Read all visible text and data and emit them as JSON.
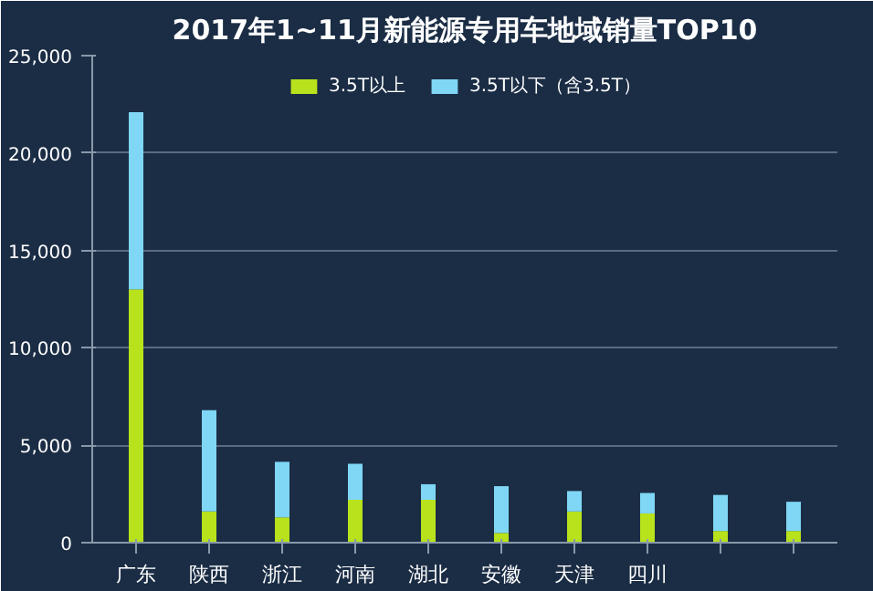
{
  "chart_data": {
    "type": "bar",
    "title": "2017年1~11月新能源专用车地域销量TOP10",
    "stacked": true,
    "categories": [
      "广东",
      "陕西",
      "浙江",
      "河南",
      "湖北",
      "安徽",
      "天津",
      "四川",
      null,
      null
    ],
    "series": [
      {
        "name": "3.5T以上",
        "color": "#b8e21c",
        "values": [
          13000,
          1600,
          1300,
          2200,
          2200,
          500,
          1600,
          1500,
          600,
          600
        ]
      },
      {
        "name": "3.5T以下（含3.5T）",
        "color": "#7fd6f5",
        "values": [
          9100,
          5200,
          2850,
          1850,
          800,
          2400,
          1050,
          1050,
          1850,
          1500
        ]
      }
    ],
    "ylim": [
      0,
      25000
    ],
    "yticks": [
      {
        "value": 0,
        "label": "0"
      },
      {
        "value": 5000,
        "label": "5,000"
      },
      {
        "value": 10000,
        "label": "10,000"
      },
      {
        "value": 15000,
        "label": "15,000"
      },
      {
        "value": 20000,
        "label": "20,000"
      },
      {
        "value": 25000,
        "label": "25,000"
      }
    ],
    "grid": "y",
    "legend": "top"
  }
}
